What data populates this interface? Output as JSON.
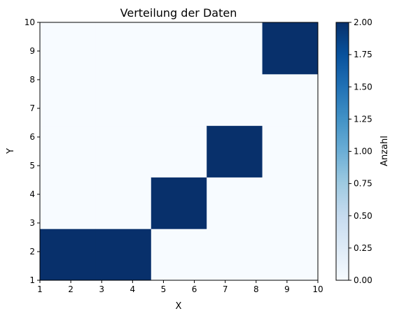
{
  "chart_data": {
    "type": "heatmap",
    "title": "Verteilung der Daten",
    "xlabel": "X",
    "ylabel": "Y",
    "xlim": [
      1,
      10
    ],
    "ylim": [
      1,
      10
    ],
    "bins": 5,
    "x_ticks": [
      "1",
      "2",
      "3",
      "4",
      "5",
      "6",
      "7",
      "8",
      "9",
      "10"
    ],
    "y_ticks": [
      "1",
      "2",
      "3",
      "4",
      "5",
      "6",
      "7",
      "8",
      "9",
      "10"
    ],
    "counts": [
      [
        2,
        0,
        0,
        0,
        0
      ],
      [
        2,
        0,
        0,
        0,
        0
      ],
      [
        0,
        2,
        0,
        0,
        0
      ],
      [
        0,
        0,
        2,
        0,
        0
      ],
      [
        0,
        0,
        0,
        0,
        2
      ]
    ],
    "colorbar": {
      "label": "Anzahl",
      "range": [
        0,
        2
      ],
      "ticks": [
        "0.00",
        "0.25",
        "0.50",
        "0.75",
        "1.00",
        "1.25",
        "1.50",
        "1.75",
        "2.00"
      ],
      "colormap": "Blues",
      "color_low": "#f7fbff",
      "color_high": "#08306b"
    }
  }
}
